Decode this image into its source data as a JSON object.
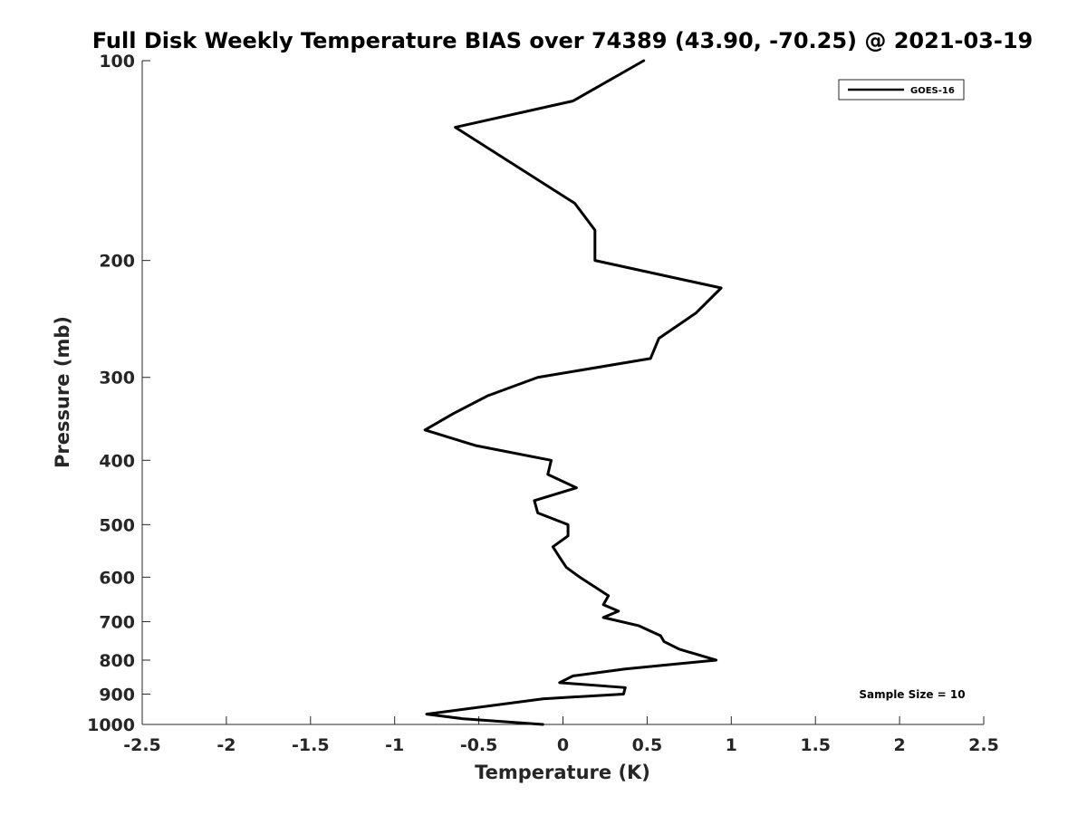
{
  "chart_data": {
    "type": "line",
    "title": "Full Disk Weekly Temperature BIAS over 74389 (43.90, -70.25) @ 2021-03-19",
    "xlabel": "Temperature (K)",
    "ylabel": "Pressure (mb)",
    "xlim": [
      -2.5,
      2.5
    ],
    "ylim": [
      100,
      1000
    ],
    "y_scale": "log",
    "y_reversed": true,
    "x_ticks": [
      -2.5,
      -2,
      -1.5,
      -1,
      -0.5,
      0,
      0.5,
      1,
      1.5,
      2,
      2.5
    ],
    "x_tick_labels": [
      "-2.5",
      "-2",
      "-1.5",
      "-1",
      "-0.5",
      "0",
      "0.5",
      "1",
      "1.5",
      "2",
      "2.5"
    ],
    "y_ticks": [
      100,
      200,
      300,
      400,
      500,
      600,
      700,
      800,
      900,
      1000
    ],
    "y_tick_labels": [
      "100",
      "200",
      "300",
      "400",
      "500",
      "600",
      "700",
      "800",
      "900",
      "1000"
    ],
    "grid": false,
    "legend_position": "top-right",
    "annotation": "Sample Size = 10",
    "series": [
      {
        "name": "GOES-16",
        "color": "#000000",
        "points": [
          {
            "x": 0.48,
            "y": 100
          },
          {
            "x": 0.06,
            "y": 115
          },
          {
            "x": -0.64,
            "y": 126
          },
          {
            "x": 0.07,
            "y": 164
          },
          {
            "x": 0.19,
            "y": 180
          },
          {
            "x": 0.19,
            "y": 200
          },
          {
            "x": 0.94,
            "y": 220
          },
          {
            "x": 0.79,
            "y": 240
          },
          {
            "x": 0.57,
            "y": 262
          },
          {
            "x": 0.52,
            "y": 281
          },
          {
            "x": -0.15,
            "y": 300
          },
          {
            "x": -0.45,
            "y": 320
          },
          {
            "x": -0.65,
            "y": 340
          },
          {
            "x": -0.82,
            "y": 360
          },
          {
            "x": -0.52,
            "y": 380
          },
          {
            "x": -0.07,
            "y": 400
          },
          {
            "x": -0.09,
            "y": 420
          },
          {
            "x": 0.08,
            "y": 440
          },
          {
            "x": -0.17,
            "y": 460
          },
          {
            "x": -0.15,
            "y": 480
          },
          {
            "x": 0.03,
            "y": 500
          },
          {
            "x": 0.03,
            "y": 520
          },
          {
            "x": -0.06,
            "y": 540
          },
          {
            "x": -0.02,
            "y": 560
          },
          {
            "x": 0.02,
            "y": 580
          },
          {
            "x": 0.1,
            "y": 600
          },
          {
            "x": 0.27,
            "y": 640
          },
          {
            "x": 0.24,
            "y": 660
          },
          {
            "x": 0.33,
            "y": 675
          },
          {
            "x": 0.24,
            "y": 690
          },
          {
            "x": 0.45,
            "y": 710
          },
          {
            "x": 0.58,
            "y": 735
          },
          {
            "x": 0.6,
            "y": 750
          },
          {
            "x": 0.69,
            "y": 770
          },
          {
            "x": 0.91,
            "y": 800
          },
          {
            "x": 0.37,
            "y": 825
          },
          {
            "x": 0.06,
            "y": 845
          },
          {
            "x": -0.02,
            "y": 865
          },
          {
            "x": 0.37,
            "y": 880
          },
          {
            "x": 0.36,
            "y": 900
          },
          {
            "x": -0.12,
            "y": 915
          },
          {
            "x": -0.81,
            "y": 965
          },
          {
            "x": -0.6,
            "y": 980
          },
          {
            "x": -0.12,
            "y": 1000
          }
        ]
      }
    ]
  }
}
